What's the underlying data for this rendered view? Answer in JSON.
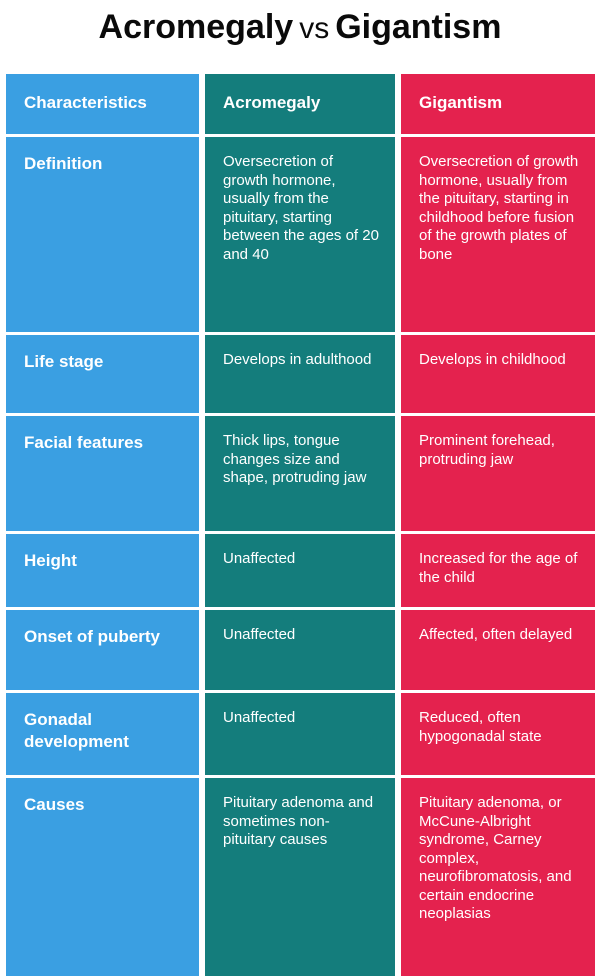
{
  "title": {
    "left": "Acromegaly",
    "vs": "vs",
    "right": "Gigantism"
  },
  "colors": {
    "characteristics": "#3a9fe2",
    "acromegaly": "#147d7c",
    "gigantism": "#e4224e"
  },
  "headers": {
    "characteristics": "Characteristics",
    "acromegaly": "Acromegaly",
    "gigantism": "Gigantism"
  },
  "rows": [
    {
      "label": "Definition",
      "acromegaly": "Oversecretion of growth hormone, usually from the pituitary, starting between the ages of 20 and 40",
      "gigantism": "Oversecretion of growth hormone, usually from the pituitary, starting in childhood before fusion of the growth plates of bone"
    },
    {
      "label": "Life stage",
      "acromegaly": "Develops in adulthood",
      "gigantism": "Develops in childhood"
    },
    {
      "label": "Facial features",
      "acromegaly": "Thick lips, tongue changes size and shape, protruding jaw",
      "gigantism": "Prominent forehead, protruding jaw"
    },
    {
      "label": "Height",
      "acromegaly": "Unaffected",
      "gigantism": "Increased for the age of the child"
    },
    {
      "label": "Onset of puberty",
      "acromegaly": "Unaffected",
      "gigantism": "Affected, often delayed"
    },
    {
      "label": "Gonadal development",
      "acromegaly": "Unaffected",
      "gigantism": "Reduced, often hypogonadal state"
    },
    {
      "label": "Causes",
      "acromegaly": "Pituitary adenoma and sometimes non-pituitary causes",
      "gigantism": "Pituitary adenoma, or McCune-Albright syndrome, Carney complex, neurofibromatosis, and certain endocrine neoplasias"
    }
  ]
}
